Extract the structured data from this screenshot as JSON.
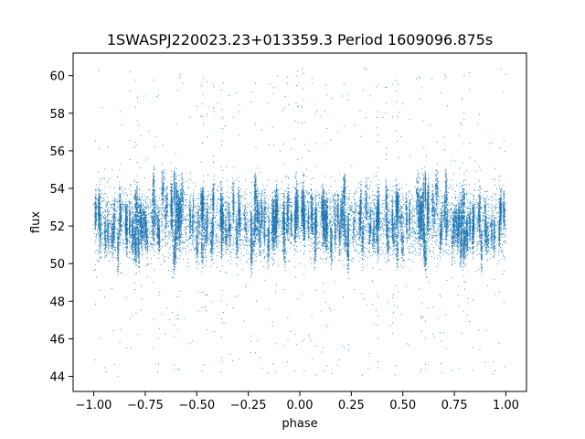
{
  "chart_data": {
    "type": "scatter",
    "title": "1SWASPJ220023.23+013359.3 Period 1609096.875s",
    "xlabel": "phase",
    "ylabel": "flux",
    "xlim": [
      -1.1,
      1.1
    ],
    "ylim": [
      43.2,
      61.2
    ],
    "xticks": [
      -1.0,
      -0.75,
      -0.5,
      -0.25,
      0.0,
      0.25,
      0.5,
      0.75,
      1.0
    ],
    "xtick_labels": [
      "−1.00",
      "−0.75",
      "−0.50",
      "−0.25",
      "0.00",
      "0.25",
      "0.50",
      "0.75",
      "1.00"
    ],
    "yticks": [
      44,
      46,
      48,
      50,
      52,
      54,
      56,
      58,
      60
    ],
    "ytick_labels": [
      "44",
      "46",
      "48",
      "50",
      "52",
      "54",
      "56",
      "58",
      "60"
    ],
    "grid": false,
    "series": [
      {
        "color": "#1f77b4",
        "x_range": [
          -1.0,
          1.0
        ],
        "typical_flux_range": [
          50,
          55
        ],
        "median_flux": 52.2,
        "spread_min": 44.0,
        "spread_max": 60.5,
        "symmetric_about_zero": true
      }
    ]
  }
}
